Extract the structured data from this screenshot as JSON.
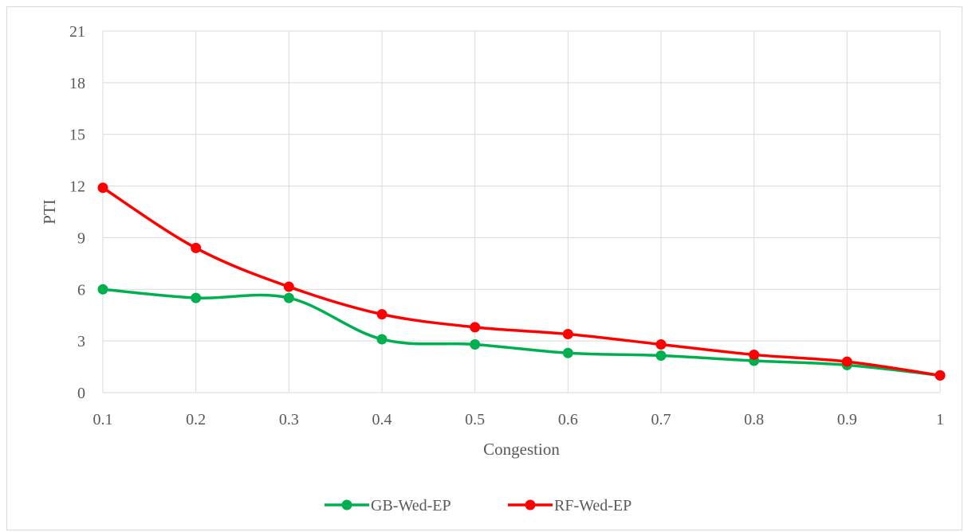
{
  "chart_data": {
    "type": "line",
    "title": "",
    "xlabel": "Congestion",
    "ylabel": "PTI",
    "x": [
      0.1,
      0.2,
      0.3,
      0.4,
      0.5,
      0.6,
      0.7,
      0.8,
      0.9,
      1
    ],
    "x_tick_labels": [
      "0.1",
      "0.2",
      "0.3",
      "0.4",
      "0.5",
      "0.6",
      "0.7",
      "0.8",
      "0.9",
      "1"
    ],
    "y_ticks": [
      0,
      3,
      6,
      9,
      12,
      15,
      18,
      21
    ],
    "ylim": [
      0,
      21
    ],
    "grid": true,
    "legend_position": "bottom",
    "smooth": true,
    "series": [
      {
        "name": "GB-Wed-EP",
        "color": "#00b050",
        "values": [
          6.0,
          5.5,
          5.5,
          3.1,
          2.8,
          2.3,
          2.15,
          1.85,
          1.6,
          1.0
        ]
      },
      {
        "name": "RF-Wed-EP",
        "color": "#ff0000",
        "values": [
          11.9,
          8.4,
          6.15,
          4.55,
          3.8,
          3.4,
          2.8,
          2.2,
          1.8,
          1.0
        ]
      }
    ]
  }
}
